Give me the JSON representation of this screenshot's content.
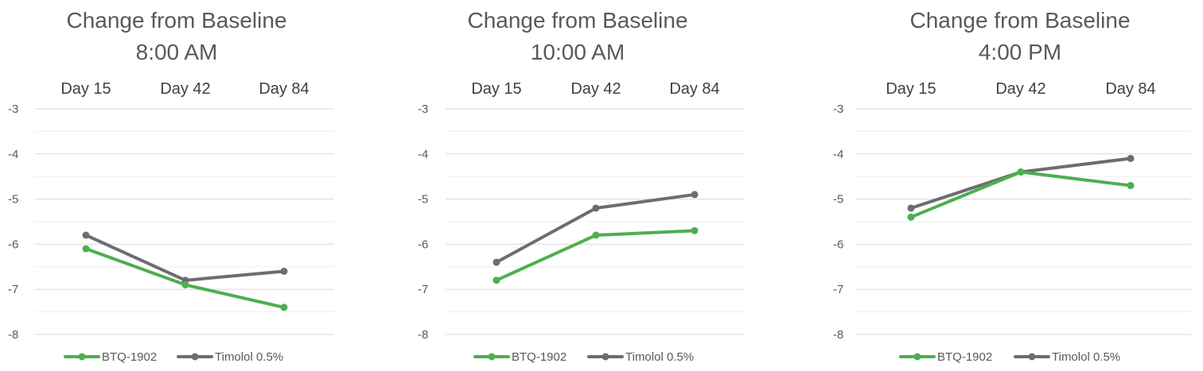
{
  "chart_data": [
    {
      "type": "line",
      "title": [
        "Change from Baseline",
        "8:00 AM"
      ],
      "categories": [
        "Day 15",
        "Day 42",
        "Day 84"
      ],
      "series": [
        {
          "name": "BTQ-1902",
          "color": "#4CAF50",
          "values": [
            -6.1,
            -6.9,
            -7.4
          ]
        },
        {
          "name": "Timolol 0.5%",
          "color": "#6d6d6d",
          "values": [
            -5.8,
            -6.8,
            -6.6
          ]
        }
      ],
      "ylim": [
        -8,
        -3
      ],
      "yticks": [
        -3,
        -4,
        -5,
        -6,
        -7,
        -8
      ],
      "xaxis_position": "top",
      "grid": true,
      "legend": "bottom"
    },
    {
      "type": "line",
      "title": [
        "Change from Baseline",
        "10:00 AM"
      ],
      "categories": [
        "Day 15",
        "Day 42",
        "Day 84"
      ],
      "series": [
        {
          "name": "BTQ-1902",
          "color": "#4CAF50",
          "values": [
            -6.8,
            -5.8,
            -5.7
          ]
        },
        {
          "name": "Timolol 0.5%",
          "color": "#6d6d6d",
          "values": [
            -6.4,
            -5.2,
            -4.9
          ]
        }
      ],
      "ylim": [
        -8,
        -3
      ],
      "yticks": [
        -3,
        -4,
        -5,
        -6,
        -7,
        -8
      ],
      "xaxis_position": "top",
      "grid": true,
      "legend": "bottom"
    },
    {
      "type": "line",
      "title": [
        "Change from Baseline",
        "4:00 PM"
      ],
      "categories": [
        "Day 15",
        "Day 42",
        "Day 84"
      ],
      "series": [
        {
          "name": "BTQ-1902",
          "color": "#4CAF50",
          "values": [
            -5.4,
            -4.4,
            -4.7
          ]
        },
        {
          "name": "Timolol 0.5%",
          "color": "#6d6d6d",
          "values": [
            -5.2,
            -4.4,
            -4.1
          ]
        }
      ],
      "ylim": [
        -8,
        -3
      ],
      "yticks": [
        -3,
        -4,
        -5,
        -6,
        -7,
        -8
      ],
      "xaxis_position": "top",
      "grid": true,
      "legend": "bottom"
    }
  ]
}
